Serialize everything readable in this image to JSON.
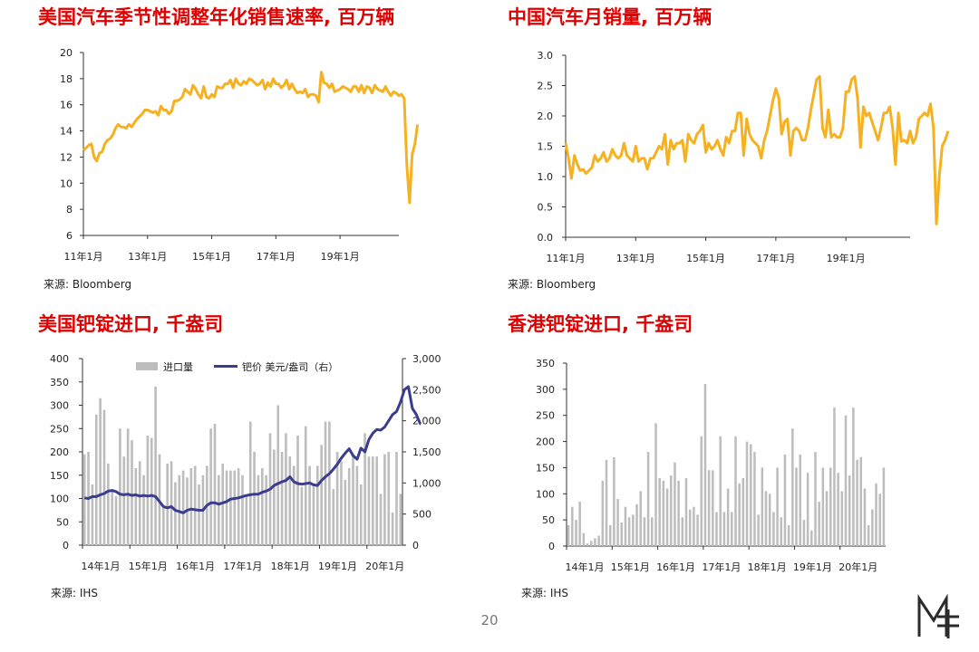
{
  "page": {
    "number": "20",
    "logo": "mt-logo-icon"
  },
  "panels": [
    {
      "title": "美国汽车季节性调整年化销售速率, 百万辆",
      "source": "来源: Bloomberg"
    },
    {
      "title": "中国汽车月销量, 百万辆",
      "source": "来源: Bloomberg"
    },
    {
      "title": "美国钯锭进口, 千盎司",
      "source": "来源: IHS"
    },
    {
      "title": "香港钯锭进口, 千盎司",
      "source": "来源: IHS"
    }
  ],
  "chart_data": [
    {
      "type": "line",
      "color": "#f5b120",
      "ylim": [
        6,
        20
      ],
      "yticks": [
        6,
        8,
        10,
        12,
        14,
        16,
        18,
        20
      ],
      "xlim": [
        0,
        118
      ],
      "xtick_positions": [
        0,
        24,
        48,
        72,
        96
      ],
      "xtick_labels": [
        "11年1月",
        "13年1月",
        "15年1月",
        "17年1月",
        "19年1月"
      ],
      "x_start": "2011-01",
      "values": [
        12.5,
        12.7,
        12.9,
        13.0,
        12.0,
        11.7,
        12.3,
        12.4,
        13.0,
        13.3,
        13.4,
        13.7,
        14.2,
        14.5,
        14.3,
        14.3,
        14.2,
        14.5,
        14.3,
        14.6,
        14.9,
        15.1,
        15.3,
        15.6,
        15.6,
        15.5,
        15.4,
        15.5,
        15.2,
        15.9,
        15.6,
        15.6,
        15.3,
        15.5,
        16.3,
        16.3,
        16.4,
        16.6,
        17.2,
        17.0,
        16.8,
        17.5,
        17.2,
        16.8,
        16.5,
        17.4,
        16.6,
        16.5,
        16.8,
        16.6,
        17.4,
        17.3,
        17.3,
        17.6,
        17.6,
        17.9,
        17.3,
        18.0,
        17.6,
        17.5,
        17.8,
        17.6,
        18.0,
        17.9,
        17.7,
        17.5,
        17.6,
        17.9,
        17.2,
        17.7,
        17.4,
        18.0,
        17.6,
        17.6,
        17.3,
        17.5,
        17.9,
        17.2,
        17.6,
        17.2,
        16.9,
        17.0,
        16.9,
        17.2,
        16.6,
        16.8,
        16.8,
        16.7,
        16.2,
        18.5,
        17.7,
        17.6,
        17.3,
        17.6,
        17.0,
        17.1,
        17.2,
        17.4,
        17.3,
        17.2,
        17.0,
        17.4,
        17.4,
        17.0,
        17.5,
        16.9,
        17.4,
        17.3,
        16.9,
        17.5,
        17.2,
        17.1,
        17.0,
        17.4,
        17.0,
        16.7,
        17.0,
        16.9,
        16.7,
        16.8,
        16.5,
        11.4,
        8.5,
        12.2,
        13.0,
        14.5
      ]
    },
    {
      "type": "line",
      "color": "#f5b120",
      "ylim": [
        0.0,
        3.0
      ],
      "yticks": [
        0.0,
        0.5,
        1.0,
        1.5,
        2.0,
        2.5,
        3.0
      ],
      "ytick_labels": [
        "0.0",
        "0.5",
        "1.0",
        "1.5",
        "2.0",
        "2.5",
        "3.0"
      ],
      "xlim": [
        0,
        118
      ],
      "xtick_positions": [
        0,
        24,
        48,
        72,
        96
      ],
      "xtick_labels": [
        "11年1月",
        "13年1月",
        "15年1月",
        "17年1月",
        "19年1月"
      ],
      "x_start": "2011-01",
      "values": [
        1.55,
        1.3,
        0.97,
        1.35,
        1.2,
        1.1,
        1.12,
        1.05,
        1.1,
        1.15,
        1.35,
        1.25,
        1.3,
        1.4,
        1.25,
        1.3,
        1.45,
        1.35,
        1.3,
        1.35,
        1.55,
        1.35,
        1.3,
        1.25,
        1.5,
        1.25,
        1.3,
        1.3,
        1.12,
        1.3,
        1.3,
        1.4,
        1.5,
        1.45,
        1.7,
        1.2,
        1.6,
        1.45,
        1.55,
        1.55,
        1.6,
        1.25,
        1.7,
        1.6,
        1.55,
        1.7,
        1.75,
        1.85,
        1.4,
        1.55,
        1.45,
        1.5,
        1.6,
        1.45,
        1.35,
        1.65,
        1.55,
        1.75,
        1.75,
        2.05,
        2.05,
        1.35,
        1.95,
        1.7,
        1.6,
        1.55,
        1.5,
        1.3,
        1.6,
        1.75,
        2.0,
        2.25,
        2.45,
        2.3,
        1.7,
        1.9,
        1.95,
        1.35,
        1.75,
        1.8,
        1.75,
        1.6,
        1.6,
        1.8,
        2.1,
        2.35,
        2.6,
        2.65,
        1.8,
        1.65,
        2.1,
        1.65,
        1.7,
        1.65,
        1.65,
        1.8,
        2.4,
        2.4,
        2.6,
        2.65,
        2.3,
        1.48,
        2.15,
        2.0,
        2.05,
        1.9,
        1.75,
        1.6,
        1.8,
        2.05,
        2.05,
        2.15,
        1.8,
        1.2,
        2.05,
        1.58,
        1.6,
        1.55,
        1.75,
        1.55,
        1.65,
        1.95,
        2.0,
        2.05,
        2.0,
        2.2,
        1.8,
        0.22,
        1.0,
        1.5,
        1.6,
        1.75
      ]
    },
    {
      "type": "bar+line",
      "legend_position": "top",
      "bar_series": {
        "name": "进口量",
        "color": "#bdbdbd",
        "axis": "left"
      },
      "line_series": {
        "name": "钯价 美元/盎司（右）",
        "color": "#3b3c8e",
        "axis": "right"
      },
      "legend_labels": [
        "进口量",
        "钯价 美元/盎司（右）"
      ],
      "ylim_left": [
        0,
        400
      ],
      "yticks_left": [
        0,
        50,
        100,
        150,
        200,
        250,
        300,
        350,
        400
      ],
      "ylim_right": [
        0,
        3000
      ],
      "yticks_right": [
        0,
        500,
        1000,
        1500,
        2000,
        2500,
        3000
      ],
      "ytick_labels_right": [
        "0",
        "500",
        "1,000",
        "1,500",
        "2,000",
        "2,500",
        "3,000"
      ],
      "xtick_positions": [
        0,
        12,
        24,
        36,
        48,
        60,
        72
      ],
      "xtick_labels": [
        "14年1月",
        "15年1月",
        "16年1月",
        "17年1月",
        "18年1月",
        "19年1月",
        "20年1月"
      ],
      "x_start": "2014-01",
      "bars": [
        195,
        200,
        130,
        280,
        315,
        290,
        175,
        120,
        105,
        250,
        190,
        250,
        225,
        165,
        180,
        150,
        235,
        230,
        340,
        195,
        80,
        175,
        180,
        135,
        150,
        160,
        145,
        165,
        170,
        130,
        150,
        170,
        250,
        260,
        150,
        175,
        160,
        160,
        160,
        165,
        150,
        105,
        265,
        200,
        150,
        165,
        150,
        240,
        205,
        300,
        200,
        240,
        190,
        170,
        235,
        125,
        255,
        170,
        130,
        170,
        215,
        265,
        265,
        120,
        200,
        180,
        140,
        165,
        195,
        170,
        130,
        240,
        190,
        190,
        190,
        110,
        195,
        200,
        70,
        200,
        110
      ],
      "line": [
        760,
        750,
        780,
        780,
        810,
        830,
        870,
        880,
        860,
        820,
        810,
        820,
        800,
        810,
        790,
        800,
        790,
        800,
        780,
        700,
        620,
        600,
        620,
        560,
        540,
        520,
        560,
        580,
        570,
        560,
        560,
        640,
        680,
        680,
        660,
        680,
        700,
        740,
        750,
        760,
        780,
        800,
        810,
        820,
        820,
        850,
        870,
        900,
        960,
        990,
        1020,
        1040,
        1100,
        1020,
        990,
        980,
        990,
        1000,
        970,
        960,
        1040,
        1100,
        1150,
        1220,
        1300,
        1400,
        1480,
        1550,
        1440,
        1380,
        1560,
        1500,
        1700,
        1800,
        1860,
        1850,
        1900,
        2000,
        2100,
        2150,
        2300,
        2500,
        2550,
        2200,
        2100,
        1950
      ]
    },
    {
      "type": "bar",
      "color": "#bdbdbd",
      "ylim": [
        0,
        350
      ],
      "yticks": [
        0,
        50,
        100,
        150,
        200,
        250,
        300,
        350
      ],
      "xtick_positions": [
        0,
        12,
        24,
        36,
        48,
        60,
        72
      ],
      "xtick_labels": [
        "14年1月",
        "15年1月",
        "16年1月",
        "17年1月",
        "18年1月",
        "19年1月",
        "20年1月"
      ],
      "x_start": "2014-01",
      "values": [
        40,
        75,
        50,
        85,
        25,
        5,
        10,
        15,
        20,
        125,
        165,
        40,
        170,
        90,
        45,
        75,
        55,
        60,
        80,
        105,
        55,
        180,
        55,
        235,
        130,
        125,
        110,
        135,
        160,
        125,
        55,
        130,
        70,
        75,
        60,
        210,
        310,
        145,
        145,
        65,
        210,
        65,
        110,
        65,
        210,
        120,
        130,
        200,
        195,
        180,
        60,
        150,
        105,
        100,
        65,
        150,
        55,
        175,
        40,
        225,
        150,
        175,
        50,
        140,
        30,
        180,
        85,
        150,
        105,
        150,
        265,
        140,
        105,
        250,
        135,
        265,
        165,
        170,
        110,
        40,
        70,
        120,
        100,
        150
      ]
    }
  ]
}
